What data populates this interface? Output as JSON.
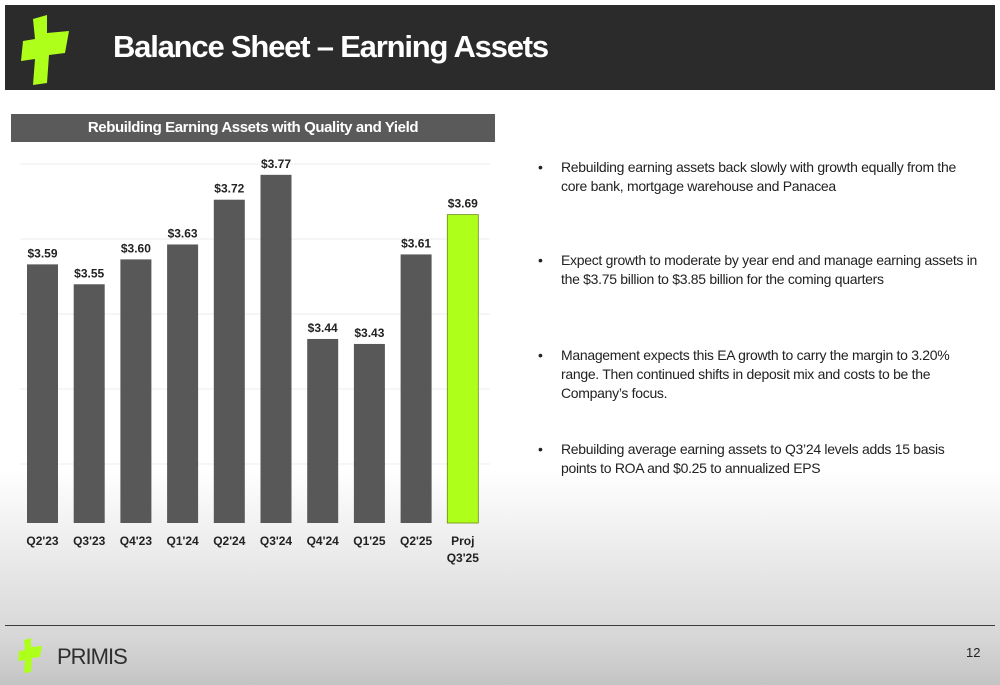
{
  "header": {
    "title": "Balance Sheet – Earning Assets"
  },
  "chart_heading": "Rebuilding Earning Assets with Quality and Yield",
  "chart_data": {
    "type": "bar",
    "title": "Rebuilding Earning Assets with Quality and Yield",
    "categories": [
      "Q2'23",
      "Q3'23",
      "Q4'23",
      "Q1'24",
      "Q2'24",
      "Q3'24",
      "Q4'24",
      "Q1'25",
      "Q2'25",
      "Proj Q3'25"
    ],
    "category_lines": [
      [
        "Q2'23"
      ],
      [
        "Q3'23"
      ],
      [
        "Q4'23"
      ],
      [
        "Q1'24"
      ],
      [
        "Q2'24"
      ],
      [
        "Q3'24"
      ],
      [
        "Q4'24"
      ],
      [
        "Q1'25"
      ],
      [
        "Q2'25"
      ],
      [
        "Proj",
        "Q3'25"
      ]
    ],
    "values": [
      3.59,
      3.55,
      3.6,
      3.63,
      3.72,
      3.77,
      3.44,
      3.43,
      3.61,
      3.69
    ],
    "data_labels": [
      "$3.59",
      "$3.55",
      "$3.60",
      "$3.63",
      "$3.72",
      "$3.77",
      "$3.44",
      "$3.43",
      "$3.61",
      "$3.69"
    ],
    "xlabel": "",
    "ylabel": "",
    "ylim": [
      3.07,
      3.83
    ],
    "grid": true,
    "bar_color": "#585858",
    "highlight_color": "#aeff1a",
    "highlight_index": 9
  },
  "bullets": [
    "Rebuilding earning assets back slowly with growth equally from the core bank, mortgage warehouse and Panacea",
    "Expect growth to moderate by year end and manage earning assets in the $3.75 billion to $3.85 billion for the coming quarters",
    "Management expects this EA growth to carry the margin to 3.20% range. Then continued shifts in deposit mix and costs to be the Company’s focus.",
    "Rebuilding average earning assets to Q3’24 levels adds 15 basis points to ROA and $0.25 to annualized EPS"
  ],
  "bullet_symbol": "•",
  "footer": {
    "brand": "PRIMIS",
    "page_number": "12"
  },
  "colors": {
    "header_bg": "#2b2b2b",
    "accent": "#aeff1a",
    "heading_bg": "#5a5a5a"
  }
}
